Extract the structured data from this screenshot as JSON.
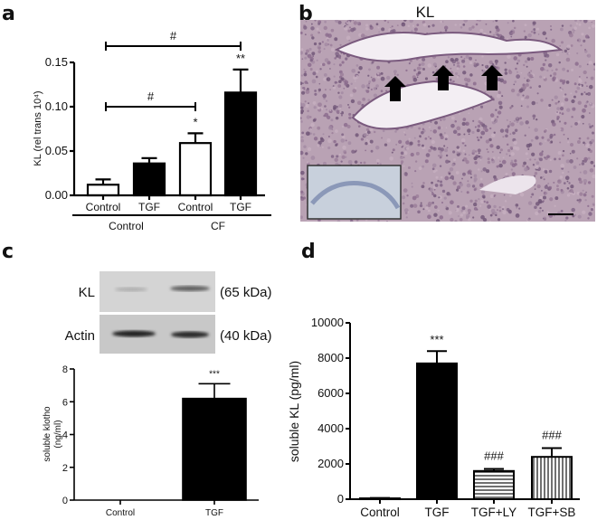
{
  "panels": {
    "a": {
      "label": "a"
    },
    "b": {
      "label": "b",
      "title": "KL"
    },
    "c": {
      "label": "c"
    },
    "d": {
      "label": "d"
    }
  },
  "blot": {
    "rows": [
      {
        "name": "KL",
        "size": "(65 kDa)"
      },
      {
        "name": "Actin",
        "size": "(40 kDa)"
      }
    ]
  },
  "chart_data": [
    {
      "panel": "a",
      "type": "bar",
      "ylabel": "KL (rel trans 10⁴)",
      "ylim": [
        0,
        0.15
      ],
      "yticks": [
        "0.00",
        "0.05",
        "0.10",
        "0.15"
      ],
      "categories": [
        "Control",
        "TGF",
        "Control",
        "TGF"
      ],
      "groups": [
        {
          "label": "Control",
          "members": [
            0,
            1
          ]
        },
        {
          "label": "CF",
          "members": [
            2,
            3
          ]
        }
      ],
      "values": [
        0.012,
        0.036,
        0.059,
        0.116
      ],
      "errors": [
        0.006,
        0.006,
        0.011,
        0.026
      ],
      "fills": [
        "white",
        "black",
        "white",
        "black"
      ],
      "annotations": [
        "",
        "",
        "*",
        "**"
      ],
      "brackets": [
        {
          "from": 0,
          "to": 3,
          "label": "#"
        },
        {
          "from": 0,
          "to": 2,
          "label": "#"
        }
      ]
    },
    {
      "panel": "c",
      "type": "bar",
      "ylabel": "soluble klotho (ng/ml)",
      "ylabel_lines": [
        "soluble klotho",
        "(ng/ml)"
      ],
      "ylim": [
        0,
        8
      ],
      "yticks": [
        "0",
        "2",
        "4",
        "6",
        "8"
      ],
      "categories": [
        "Control",
        "TGF"
      ],
      "values": [
        0,
        6.2
      ],
      "errors": [
        0,
        0.9
      ],
      "fills": [
        "white",
        "black"
      ],
      "annotations": [
        "",
        "***"
      ]
    },
    {
      "panel": "d",
      "type": "bar",
      "ylabel": "soluble KL (pg/ml)",
      "ylim": [
        0,
        10000
      ],
      "yticks": [
        "0",
        "2000",
        "4000",
        "6000",
        "8000",
        "10000"
      ],
      "categories": [
        "Control",
        "TGF",
        "TGF+LY",
        "TGF+SB"
      ],
      "values": [
        50,
        7700,
        1600,
        2400
      ],
      "errors": [
        20,
        700,
        120,
        500
      ],
      "fills": [
        "white",
        "black",
        "horizontal-stripes",
        "vertical-stripes"
      ],
      "annotations": [
        "",
        "***",
        "###",
        "###"
      ]
    }
  ]
}
